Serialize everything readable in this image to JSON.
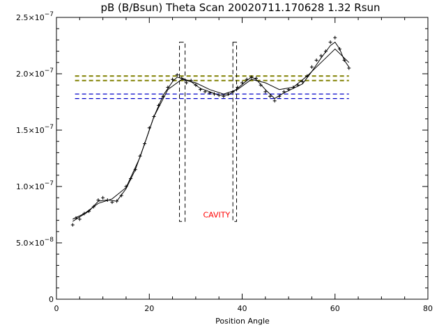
{
  "chart_data": {
    "type": "scatter",
    "title": "pB (B/Bsun) Theta Scan 20020711.170628 1.32 Rsun",
    "xlabel": "Position Angle",
    "ylabel": "",
    "xlim": [
      0,
      80
    ],
    "ylim": [
      0,
      2.5e-07
    ],
    "x_ticks": [
      {
        "value": 0,
        "label": "0"
      },
      {
        "value": 20,
        "label": "20"
      },
      {
        "value": 40,
        "label": "40"
      },
      {
        "value": 60,
        "label": "60"
      },
      {
        "value": 80,
        "label": "80"
      }
    ],
    "y_ticks": [
      {
        "value": 0,
        "mant": "0",
        "exp": ""
      },
      {
        "value": 5e-08,
        "mant": "5.0×10",
        "exp": "−8"
      },
      {
        "value": 1e-07,
        "mant": "1.0×10",
        "exp": "−7"
      },
      {
        "value": 1.5e-07,
        "mant": "1.5×10",
        "exp": "−7"
      },
      {
        "value": 2e-07,
        "mant": "2.0×10",
        "exp": "−7"
      },
      {
        "value": 2.5e-07,
        "mant": "2.5×10",
        "exp": "−7"
      }
    ],
    "grid": false,
    "series": [
      {
        "style": "points-plus",
        "color": "#000000",
        "x": [
          3.5,
          4.2,
          5.0,
          6.0,
          7.0,
          8.0,
          9.0,
          10.0,
          11.0,
          12.0,
          13.0,
          14.0,
          15.0,
          16.0,
          17.0,
          18.0,
          19.0,
          20.0,
          21.0,
          22.0,
          23.0,
          24.0,
          25.0,
          26.0,
          27.0,
          28.0,
          29.0,
          30.0,
          31.0,
          32.0,
          33.0,
          34.0,
          35.0,
          36.0,
          37.0,
          38.0,
          39.0,
          40.0,
          41.0,
          42.0,
          43.0,
          44.0,
          45.0,
          46.0,
          47.0,
          48.0,
          49.0,
          50.0,
          51.0,
          52.0,
          53.0,
          54.0,
          55.0,
          56.0,
          57.0,
          58.0,
          59.0,
          60.0,
          61.0,
          62.0,
          63.0
        ],
        "y": [
          6.6e-08,
          7.2e-08,
          7.1e-08,
          7.6e-08,
          7.8e-08,
          8.2e-08,
          8.8e-08,
          9e-08,
          8.8e-08,
          8.6e-08,
          8.7e-08,
          9.2e-08,
          1e-07,
          1.07e-07,
          1.15e-07,
          1.27e-07,
          1.38e-07,
          1.52e-07,
          1.62e-07,
          1.72e-07,
          1.8e-07,
          1.88e-07,
          1.95e-07,
          1.99e-07,
          1.96e-07,
          1.92e-07,
          1.94e-07,
          1.9e-07,
          1.86e-07,
          1.84e-07,
          1.83e-07,
          1.82e-07,
          1.81e-07,
          1.8e-07,
          1.82e-07,
          1.84e-07,
          1.88e-07,
          1.92e-07,
          1.95e-07,
          1.97e-07,
          1.96e-07,
          1.9e-07,
          1.84e-07,
          1.8e-07,
          1.76e-07,
          1.8e-07,
          1.84e-07,
          1.86e-07,
          1.88e-07,
          1.9e-07,
          1.93e-07,
          1.98e-07,
          2.06e-07,
          2.12e-07,
          2.16e-07,
          2.2e-07,
          2.28e-07,
          2.32e-07,
          2.22e-07,
          2.12e-07,
          2.05e-07
        ]
      },
      {
        "style": "line",
        "color": "#000000",
        "x": [
          3.5,
          5.0,
          7.0,
          9.0,
          11.0,
          13.0,
          15.0,
          17.0,
          19.0,
          21.0,
          23.0,
          25.0,
          26.0,
          27.0,
          29.0,
          31.0,
          33.0,
          35.0,
          37.0,
          39.0,
          41.0,
          42.0,
          43.0,
          45.0,
          47.0,
          49.0,
          51.0,
          53.0,
          55.0,
          57.0,
          59.0,
          60.0,
          61.0,
          62.0,
          63.0
        ],
        "y": [
          6.9e-08,
          7.3e-08,
          7.8e-08,
          8.7e-08,
          8.8e-08,
          8.7e-08,
          9.8e-08,
          1.15e-07,
          1.38e-07,
          1.62e-07,
          1.81e-07,
          1.93e-07,
          1.97e-07,
          1.96e-07,
          1.93e-07,
          1.87e-07,
          1.84e-07,
          1.81e-07,
          1.81e-07,
          1.87e-07,
          1.94e-07,
          1.97e-07,
          1.95e-07,
          1.86e-07,
          1.78e-07,
          1.83e-07,
          1.87e-07,
          1.91e-07,
          2.02e-07,
          2.14e-07,
          2.25e-07,
          2.28e-07,
          2.22e-07,
          2.12e-07,
          2.06e-07
        ]
      },
      {
        "style": "line",
        "color": "#000000",
        "x": [
          3.5,
          6.0,
          9.0,
          12.0,
          15.0,
          18.0,
          21.0,
          24.0,
          27.0,
          30.0,
          33.0,
          36.0,
          39.0,
          42.0,
          45.0,
          48.0,
          51.0,
          54.0,
          57.0,
          60.0,
          63.0
        ],
        "y": [
          7.1e-08,
          7.6e-08,
          8.5e-08,
          8.9e-08,
          9.9e-08,
          1.26e-07,
          1.62e-07,
          1.86e-07,
          1.95e-07,
          1.92e-07,
          1.86e-07,
          1.82e-07,
          1.86e-07,
          1.95e-07,
          1.92e-07,
          1.86e-07,
          1.88e-07,
          1.98e-07,
          2.1e-07,
          2.22e-07,
          2.1e-07
        ]
      }
    ],
    "reference_lines": [
      {
        "y": 1.98e-07,
        "x_range": [
          4,
          63
        ],
        "color": "#808000",
        "style": "dashed"
      },
      {
        "y": 1.94e-07,
        "x_range": [
          4,
          63
        ],
        "color": "#808000",
        "style": "dashed"
      },
      {
        "y": 1.82e-07,
        "x_range": [
          4,
          63
        ],
        "color": "#0000c8",
        "style": "dashed"
      },
      {
        "y": 1.78e-07,
        "x_range": [
          4,
          63
        ],
        "color": "#0000c8",
        "style": "dashed"
      }
    ],
    "dashed_boxes": [
      {
        "x0": 26.5,
        "x1": 27.7,
        "y0": 6.9e-08,
        "y1": 2.28e-07
      },
      {
        "x0": 38.0,
        "x1": 38.8,
        "y0": 6.9e-08,
        "y1": 2.28e-07
      }
    ],
    "annotations": [
      {
        "text": "CAVITY",
        "x": 34.5,
        "y": 7.5e-08,
        "color": "#ff0000"
      }
    ]
  }
}
